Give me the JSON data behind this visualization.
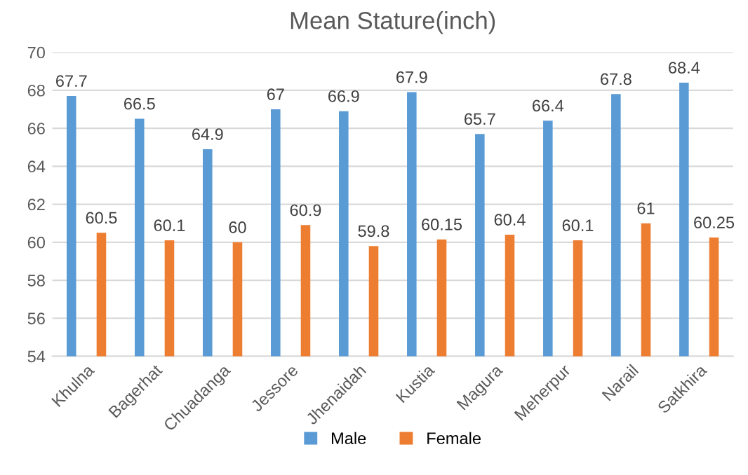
{
  "chart_data": {
    "type": "bar",
    "title": "Mean Stature(inch)",
    "categories": [
      "Khulna",
      "Bagerhat",
      "Chuadanga",
      "Jessore",
      "Jhenaidah",
      "Kustia",
      "Magura",
      "Meherpur",
      "Narail",
      "Satkhira"
    ],
    "series": [
      {
        "name": "Male",
        "color": "#5b9bd5",
        "values": [
          67.7,
          66.5,
          64.9,
          67,
          66.9,
          67.9,
          65.7,
          66.4,
          67.8,
          68.4
        ]
      },
      {
        "name": "Female",
        "color": "#ed7d31",
        "values": [
          60.5,
          60.1,
          60,
          60.9,
          59.8,
          60.15,
          60.4,
          60.1,
          61,
          60.25
        ]
      }
    ],
    "ylim": [
      54,
      70
    ],
    "yticks": [
      54,
      56,
      58,
      60,
      62,
      64,
      66,
      68,
      70
    ],
    "grid": "y",
    "legend": "bottom",
    "data_labels": true
  }
}
